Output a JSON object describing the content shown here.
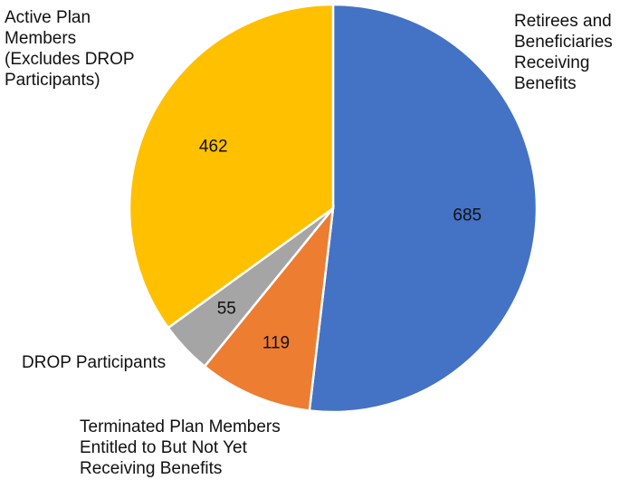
{
  "chart_data": {
    "type": "pie",
    "slices": [
      {
        "label": "Retirees and\nBeneficiaries\nReceiving\nBenefits",
        "value": 685,
        "color": "#4472C4"
      },
      {
        "label": "Terminated Plan Members\nEntitled to But Not Yet\nReceiving Benefits",
        "value": 119,
        "color": "#ED7D31"
      },
      {
        "label": "DROP Participants",
        "value": 55,
        "color": "#A5A5A5"
      },
      {
        "label": "Active Plan\nMembers\n(Excludes DROP\nParticipants)",
        "value": 462,
        "color": "#FFC000"
      }
    ]
  }
}
